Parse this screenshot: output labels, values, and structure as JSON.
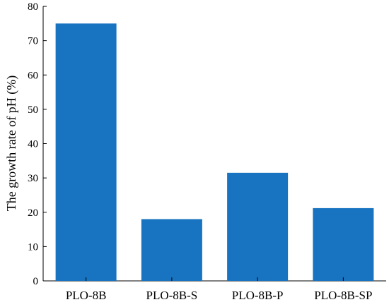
{
  "chart_data": {
    "type": "bar",
    "title": "",
    "xlabel": "",
    "ylabel": "The growth rate of pH (%)",
    "categories": [
      "PLO-8B",
      "PLO-8B-S",
      "PLO-8B-P",
      "PLO-8B-SP"
    ],
    "values": [
      75,
      18,
      31.5,
      21.2
    ],
    "ylim": [
      0,
      80
    ],
    "yticks": [
      0,
      10,
      20,
      30,
      40,
      50,
      60,
      70,
      80
    ],
    "grid": false,
    "legend": "none",
    "bar_color": "#1873c0"
  }
}
